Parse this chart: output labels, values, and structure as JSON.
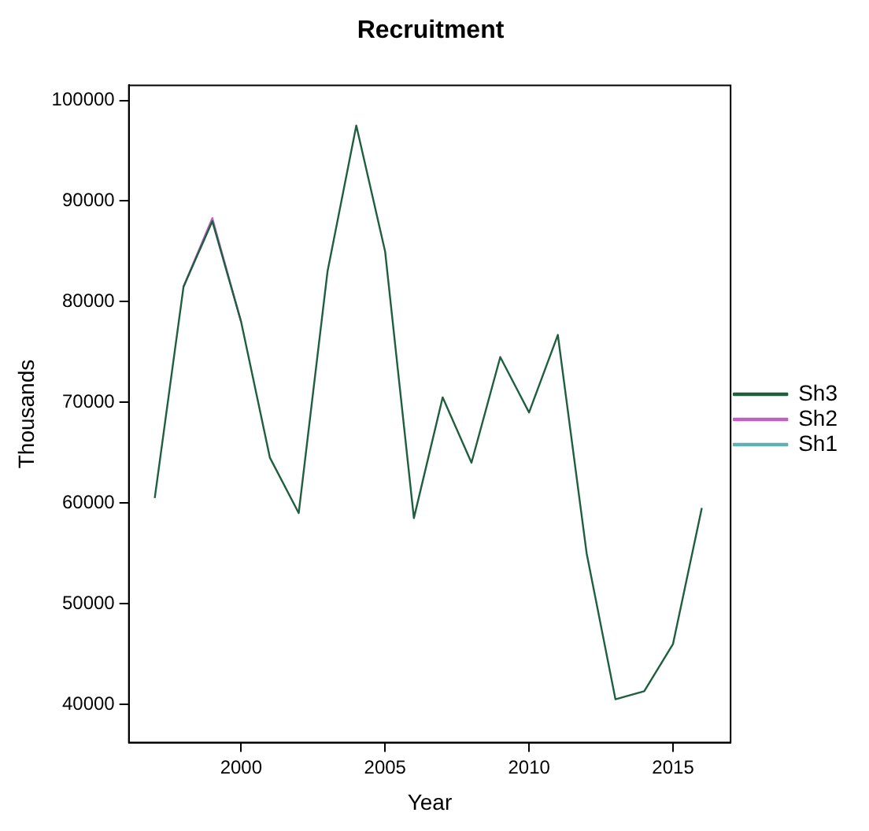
{
  "chart_data": {
    "type": "line",
    "title": "Recruitment",
    "xlabel": "Year",
    "ylabel": "Thousands",
    "x": [
      1997,
      1998,
      1999,
      2000,
      2001,
      2002,
      2003,
      2004,
      2005,
      2006,
      2007,
      2008,
      2009,
      2010,
      2011,
      2012,
      2013,
      2014,
      2015,
      2016
    ],
    "series": [
      {
        "name": "Sh1",
        "color": "#5fb0b0",
        "values": [
          null,
          null,
          null,
          null,
          null,
          null,
          null,
          null,
          null,
          null,
          null,
          null,
          null,
          null,
          null,
          null,
          null,
          null,
          null,
          null
        ]
      },
      {
        "name": "Sh2",
        "color": "#c060c0",
        "values": [
          null,
          81500,
          88300,
          78000,
          null,
          null,
          null,
          null,
          null,
          null,
          null,
          null,
          null,
          null,
          null,
          null,
          null,
          null,
          null,
          null
        ]
      },
      {
        "name": "Sh3",
        "color": "#1f5f3f",
        "values": [
          60500,
          81500,
          88000,
          78000,
          64500,
          59000,
          83000,
          97500,
          85000,
          58500,
          70500,
          64000,
          74500,
          69000,
          76700,
          55000,
          40500,
          41300,
          46000,
          59500
        ]
      }
    ],
    "xlim": [
      1996.1,
      2017
    ],
    "xticks": [
      2000,
      2005,
      2010,
      2015
    ],
    "ylim": [
      36200,
      101500
    ],
    "yticks": [
      40000,
      50000,
      60000,
      70000,
      80000,
      90000,
      100000
    ],
    "grid": false,
    "legend": "right",
    "marker": "none",
    "line_style": "solid"
  }
}
